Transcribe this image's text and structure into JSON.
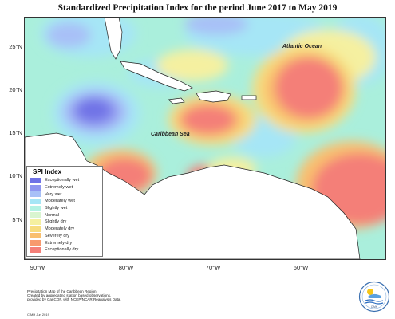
{
  "title": "Standardized Precipitation Index for the period June 2017 to May 2019",
  "labels": {
    "atlantic": "Atlantic Ocean",
    "caribbean": "Caribbean Sea"
  },
  "latitude_ticks": [
    "25°N",
    "20°N",
    "15°N",
    "10°N",
    "5°N"
  ],
  "longitude_ticks": [
    "90°W",
    "80°W",
    "70°W",
    "60°W"
  ],
  "legend": {
    "title": "SPI Index",
    "items": [
      {
        "label": "Exceptionally wet",
        "color": "#6f72e6"
      },
      {
        "label": "Extremely wet",
        "color": "#8f96f0"
      },
      {
        "label": "Very wet",
        "color": "#a8c0f7"
      },
      {
        "label": "Moderately wet",
        "color": "#a6e6f6"
      },
      {
        "label": "Slightly wet",
        "color": "#b3f2e3"
      },
      {
        "label": "Normal",
        "color": "#d9f5d0"
      },
      {
        "label": "Slightly dry",
        "color": "#f5f0a0"
      },
      {
        "label": "Moderately dry",
        "color": "#f7dc7e"
      },
      {
        "label": "Severely dry",
        "color": "#f9bf6e"
      },
      {
        "label": "Extremely dry",
        "color": "#f79a6e"
      },
      {
        "label": "Exceptionally dry",
        "color": "#f47f78"
      }
    ]
  },
  "caption": {
    "line1": "Precipitation Map of the Caribbean Region.",
    "line2": "Created by aggregating station based observations,",
    "line3": "provided by CariCOF, with NCEP/NCAR Reanalysis Data."
  },
  "credit": "CIMH  Jun 2019",
  "logo_text": "CIMH"
}
